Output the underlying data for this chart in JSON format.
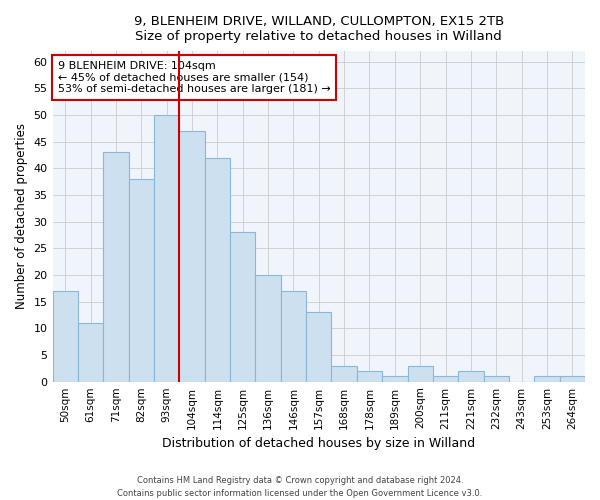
{
  "title1": "9, BLENHEIM DRIVE, WILLAND, CULLOMPTON, EX15 2TB",
  "title2": "Size of property relative to detached houses in Willand",
  "xlabel": "Distribution of detached houses by size in Willand",
  "ylabel": "Number of detached properties",
  "categories": [
    "50sqm",
    "61sqm",
    "71sqm",
    "82sqm",
    "93sqm",
    "104sqm",
    "114sqm",
    "125sqm",
    "136sqm",
    "146sqm",
    "157sqm",
    "168sqm",
    "178sqm",
    "189sqm",
    "200sqm",
    "211sqm",
    "221sqm",
    "232sqm",
    "243sqm",
    "253sqm",
    "264sqm"
  ],
  "values": [
    17,
    11,
    43,
    38,
    50,
    47,
    42,
    28,
    20,
    17,
    13,
    3,
    2,
    1,
    3,
    1,
    2,
    1,
    0,
    1,
    1
  ],
  "bar_color": "#cce0f0",
  "bar_edge_color": "#8ab8d8",
  "highlight_index": 5,
  "highlight_line_color": "#cc0000",
  "annotation_line1": "9 BLENHEIM DRIVE: 104sqm",
  "annotation_line2": "← 45% of detached houses are smaller (154)",
  "annotation_line3": "53% of semi-detached houses are larger (181) →",
  "annotation_box_color": "#ffffff",
  "annotation_box_edge": "#cc0000",
  "grid_color": "#cccccc",
  "bg_color": "#ffffff",
  "plot_bg_color": "#f0f4fb",
  "footer1": "Contains HM Land Registry data © Crown copyright and database right 2024.",
  "footer2": "Contains public sector information licensed under the Open Government Licence v3.0.",
  "ylim": [
    0,
    62
  ],
  "yticks": [
    0,
    5,
    10,
    15,
    20,
    25,
    30,
    35,
    40,
    45,
    50,
    55,
    60
  ]
}
